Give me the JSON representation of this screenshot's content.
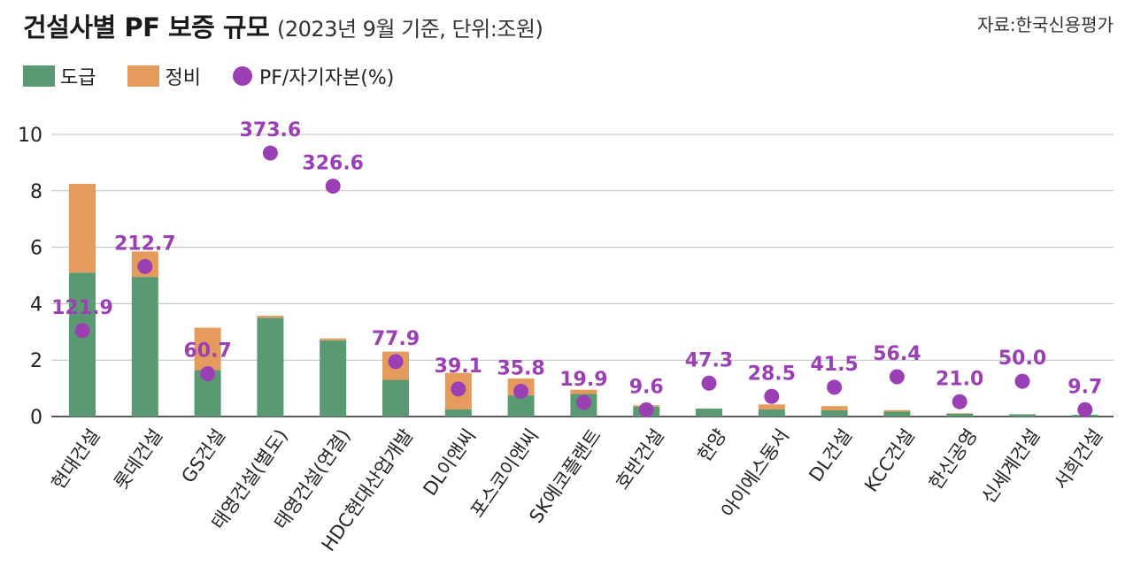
{
  "header": {
    "title_main": "건설사별 PF 보증 규모",
    "title_sub": "(2023년 9월 기준, 단위:조원)",
    "source": "자료:한국신용평가"
  },
  "colors": {
    "dogeup": "#5a9a72",
    "jeongbi": "#e59b5d",
    "ratio": "#9b3fb5",
    "grid": "#bdbdbd",
    "axis": "#222222"
  },
  "chart_data": {
    "type": "bar",
    "stacked": true,
    "ylim": [
      0,
      10
    ],
    "yticks": [
      0,
      2,
      4,
      6,
      8,
      10
    ],
    "categories": [
      "현대건설",
      "롯데건설",
      "GS건설",
      "태영건설(별도)",
      "태영건설(연결)",
      "HDC현대산업개발",
      "DL이앤씨",
      "포스코이앤씨",
      "SK에코플랜트",
      "호반건설",
      "한양",
      "아이에스동서",
      "DL건설",
      "KCC건설",
      "한신공영",
      "신세계건설",
      "서희건설"
    ],
    "series": [
      {
        "name": "도급",
        "values": [
          5.1,
          4.95,
          1.65,
          3.5,
          2.7,
          1.3,
          0.25,
          0.75,
          0.8,
          0.35,
          0.28,
          0.25,
          0.22,
          0.18,
          0.1,
          0.08,
          0.06
        ]
      },
      {
        "name": "정비",
        "values": [
          3.15,
          0.9,
          1.5,
          0.07,
          0.07,
          1.0,
          1.3,
          0.6,
          0.15,
          0.05,
          0.0,
          0.18,
          0.15,
          0.05,
          0.02,
          0.0,
          0.0
        ]
      }
    ],
    "ratio_series": {
      "name": "PF/자기자본(%)",
      "values": [
        121.9,
        212.7,
        60.7,
        373.6,
        326.6,
        77.9,
        39.1,
        35.8,
        19.9,
        9.6,
        47.3,
        28.5,
        41.5,
        56.4,
        21.0,
        50.0,
        9.7
      ],
      "labels": [
        "121.9",
        "212.7",
        "60.7",
        "373.6",
        "326.6",
        "77.9",
        "39.1",
        "35.8",
        "19.9",
        "9.6",
        "47.3",
        "28.5",
        "41.5",
        "56.4",
        "21.0",
        "50.0",
        "9.7"
      ],
      "scale_max_percent": 400
    },
    "legend": [
      "도급",
      "정비",
      "PF/자기자본(%)"
    ]
  }
}
